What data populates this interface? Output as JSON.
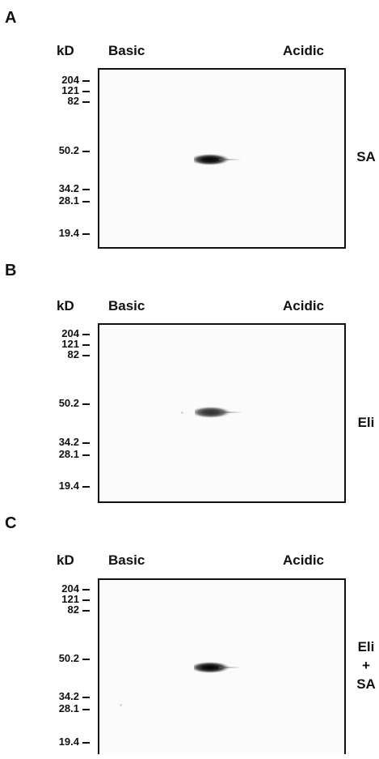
{
  "panels": [
    {
      "letter": "A",
      "unit": "kD",
      "left_label": "Basic",
      "right_label": "Acidic",
      "markers": [
        "204",
        "121",
        "82",
        "50.2",
        "34.2",
        "28.1",
        "19.4"
      ],
      "treatment": [
        "SA"
      ]
    },
    {
      "letter": "B",
      "unit": "kD",
      "left_label": "Basic",
      "right_label": "Acidic",
      "markers": [
        "204",
        "121",
        "82",
        "50.2",
        "34.2",
        "28.1",
        "19.4"
      ],
      "treatment": [
        "Eli"
      ]
    },
    {
      "letter": "C",
      "unit": "kD",
      "left_label": "Basic",
      "right_label": "Acidic",
      "markers": [
        "204",
        "121",
        "82",
        "50.2",
        "34.2",
        "28.1",
        "19.4"
      ],
      "treatment": [
        "Eli",
        "+",
        "SA"
      ]
    }
  ]
}
